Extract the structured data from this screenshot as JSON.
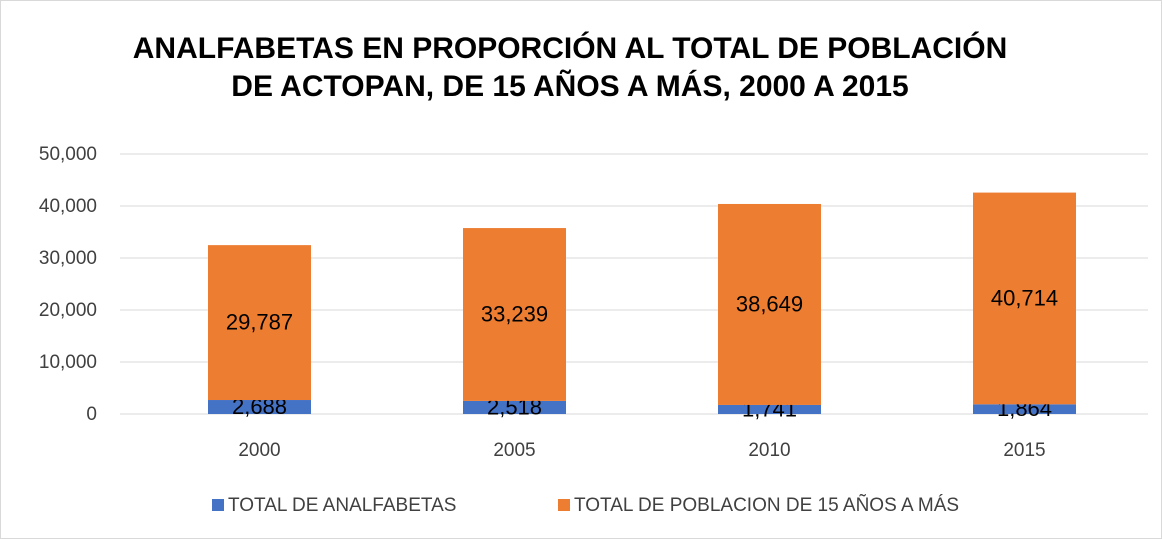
{
  "chart_data": {
    "type": "stacked_bar",
    "title": [
      "ANALFABETAS EN PROPORCIÓN AL TOTAL DE POBLACIÓN",
      "DE ACTOPAN, DE 15 AÑOS A MÁS, 2000 A 2015"
    ],
    "categories": [
      "2000",
      "2005",
      "2010",
      "2015"
    ],
    "series": [
      {
        "name": "TOTAL DE ANALFABETAS",
        "color": "#4472c4",
        "values": [
          2688,
          2518,
          1741,
          1864
        ],
        "value_labels": [
          "2,688",
          "2,518",
          "1,741",
          "1,864"
        ]
      },
      {
        "name": "TOTAL DE POBLACION DE 15 AÑOS A MÁS",
        "color": "#ed7d31",
        "values": [
          29787,
          33239,
          38649,
          40714
        ],
        "value_labels": [
          "29,787",
          "33,239",
          "38,649",
          "40,714"
        ]
      }
    ],
    "ylim": [
      0,
      50000
    ],
    "yticks": [
      0,
      {
        "value": 10000,
        "label": "10,000"
      },
      {
        "value": 20000,
        "label": "20,000"
      },
      {
        "value": 30000,
        "label": "30,000"
      },
      {
        "value": 40000,
        "label": "40,000"
      },
      {
        "value": 50000,
        "label": "50,000"
      }
    ],
    "grid": true,
    "legend": "bottom"
  }
}
